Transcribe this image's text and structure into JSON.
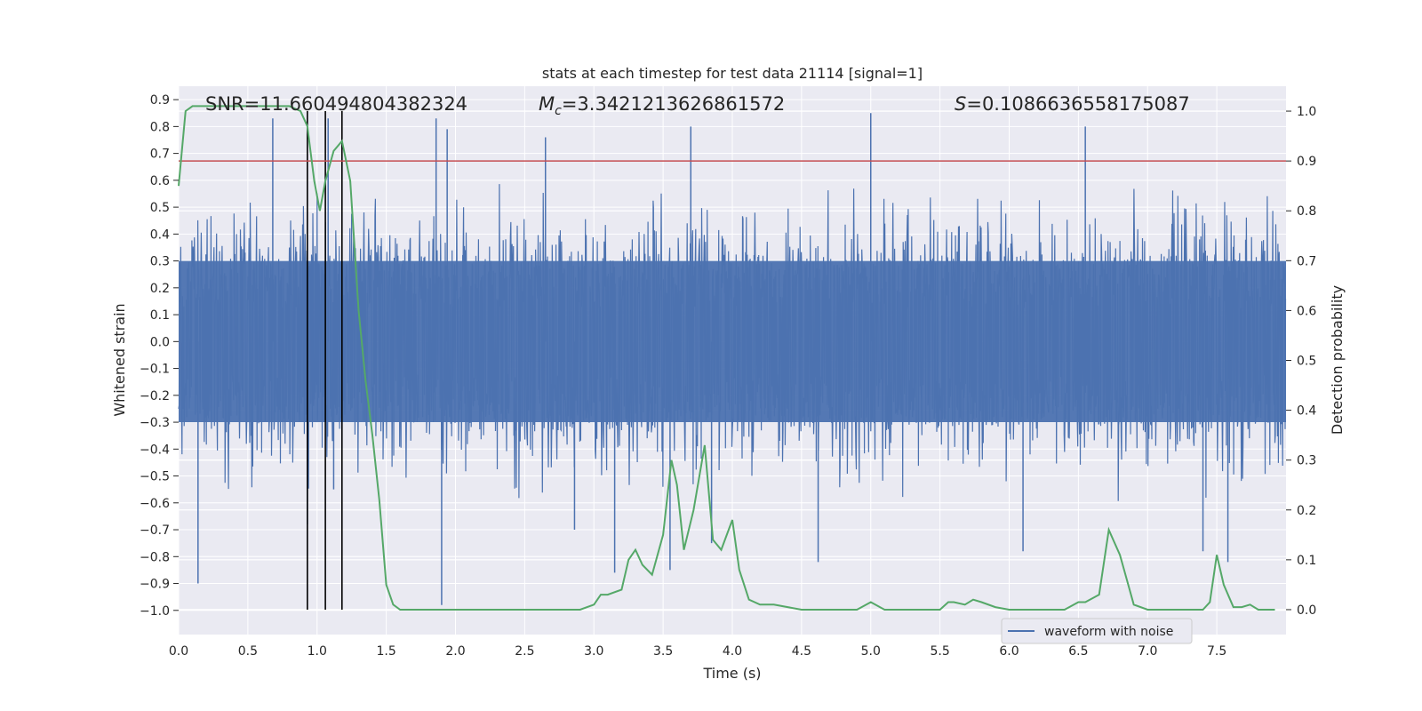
{
  "chart_data": {
    "type": "line",
    "title": "stats at each timestep for test data 21114 [signal=1]",
    "xlabel": "Time (s)",
    "ylabel": "Whitened strain",
    "y2label": "Detection probability",
    "xlim": [
      0.0,
      8.0
    ],
    "ylim": [
      -1.09,
      0.95
    ],
    "y2lim": [
      -0.05,
      1.05
    ],
    "x_ticks": [
      "0.0",
      "0.5",
      "1.0",
      "1.5",
      "2.0",
      "2.5",
      "3.0",
      "3.5",
      "4.0",
      "4.5",
      "5.0",
      "5.5",
      "6.0",
      "6.5",
      "7.0",
      "7.5"
    ],
    "y_ticks": [
      "0.9",
      "0.8",
      "0.7",
      "0.6",
      "0.5",
      "0.4",
      "0.3",
      "0.2",
      "0.1",
      "0.0",
      "-0.1",
      "-0.2",
      "-0.3",
      "-0.4",
      "-0.5",
      "-0.6",
      "-0.7",
      "-0.8",
      "-0.9",
      "-1.0"
    ],
    "y2_ticks": [
      "1.0",
      "0.9",
      "0.8",
      "0.7",
      "0.6",
      "0.5",
      "0.4",
      "0.3",
      "0.2",
      "0.1",
      "0.0"
    ],
    "grid": true,
    "legend_placement": "lower-right",
    "annotations": {
      "snr": "SNR=11.660494804382324",
      "mc_symbol": "M",
      "mc_sub": "c",
      "mc_value": "=3.3421213626861572",
      "s_symbol": "S",
      "s_value": "=0.1086636558175087"
    },
    "threshold_probability": 0.9,
    "markers_x": [
      0.93,
      1.06,
      1.18
    ],
    "series": [
      {
        "name": "waveform with noise",
        "color": "#4c72b0",
        "envelope": {
          "typical_max": 0.3,
          "typical_min": -0.3
        },
        "peaks": [
          {
            "x": 0.68,
            "y": 0.83
          },
          {
            "x": 0.93,
            "y": -0.68
          },
          {
            "x": 1.08,
            "y": 0.83
          },
          {
            "x": 1.12,
            "y": -0.55
          },
          {
            "x": 1.86,
            "y": 0.83
          },
          {
            "x": 1.9,
            "y": -0.98
          },
          {
            "x": 1.94,
            "y": 0.79
          },
          {
            "x": 0.14,
            "y": -0.9
          },
          {
            "x": 2.65,
            "y": 0.76
          },
          {
            "x": 3.15,
            "y": -0.86
          },
          {
            "x": 3.55,
            "y": -0.85
          },
          {
            "x": 3.7,
            "y": 0.8
          },
          {
            "x": 3.85,
            "y": -0.75
          },
          {
            "x": 4.62,
            "y": -0.82
          },
          {
            "x": 5.0,
            "y": 0.85
          },
          {
            "x": 6.55,
            "y": 0.8
          },
          {
            "x": 7.58,
            "y": -0.82
          },
          {
            "x": 7.4,
            "y": -0.78
          },
          {
            "x": 6.1,
            "y": -0.78
          },
          {
            "x": 2.86,
            "y": -0.7
          }
        ]
      },
      {
        "name": "",
        "color": "#55a868",
        "axis": "right",
        "x": [
          0.0,
          0.05,
          0.1,
          0.2,
          0.3,
          0.4,
          0.5,
          0.6,
          0.7,
          0.8,
          0.88,
          0.93,
          0.98,
          1.02,
          1.06,
          1.12,
          1.18,
          1.24,
          1.3,
          1.35,
          1.4,
          1.45,
          1.5,
          1.55,
          1.6,
          1.7,
          1.8,
          1.9,
          2.0,
          2.1,
          2.2,
          2.3,
          2.5,
          2.7,
          2.9,
          3.0,
          3.05,
          3.1,
          3.2,
          3.25,
          3.3,
          3.35,
          3.42,
          3.5,
          3.56,
          3.6,
          3.65,
          3.72,
          3.8,
          3.86,
          3.92,
          4.0,
          4.05,
          4.12,
          4.2,
          4.3,
          4.5,
          4.7,
          4.9,
          5.0,
          5.1,
          5.2,
          5.3,
          5.4,
          5.5,
          5.56,
          5.6,
          5.68,
          5.74,
          5.8,
          5.9,
          6.0,
          6.2,
          6.4,
          6.5,
          6.55,
          6.65,
          6.72,
          6.8,
          6.9,
          7.0,
          7.2,
          7.4,
          7.45,
          7.5,
          7.55,
          7.62,
          7.68,
          7.74,
          7.8,
          7.92
        ],
        "values": [
          0.85,
          1.0,
          1.01,
          1.01,
          1.01,
          1.01,
          1.01,
          1.01,
          1.01,
          1.01,
          1.0,
          0.97,
          0.86,
          0.8,
          0.86,
          0.92,
          0.94,
          0.86,
          0.6,
          0.46,
          0.35,
          0.22,
          0.05,
          0.01,
          0.0,
          0.0,
          0.0,
          0.0,
          0.0,
          0.0,
          0.0,
          0.0,
          0.0,
          0.0,
          0.0,
          0.01,
          0.03,
          0.03,
          0.04,
          0.1,
          0.12,
          0.09,
          0.07,
          0.15,
          0.3,
          0.25,
          0.12,
          0.2,
          0.33,
          0.14,
          0.12,
          0.18,
          0.08,
          0.02,
          0.01,
          0.01,
          0.0,
          0.0,
          0.0,
          0.015,
          0.0,
          0.0,
          0.0,
          0.0,
          0.0,
          0.015,
          0.015,
          0.01,
          0.02,
          0.015,
          0.005,
          0.0,
          0.0,
          0.0,
          0.015,
          0.015,
          0.03,
          0.16,
          0.11,
          0.01,
          0.0,
          0.0,
          0.0,
          0.015,
          0.11,
          0.05,
          0.005,
          0.005,
          0.01,
          0.0,
          0.0
        ]
      }
    ]
  }
}
